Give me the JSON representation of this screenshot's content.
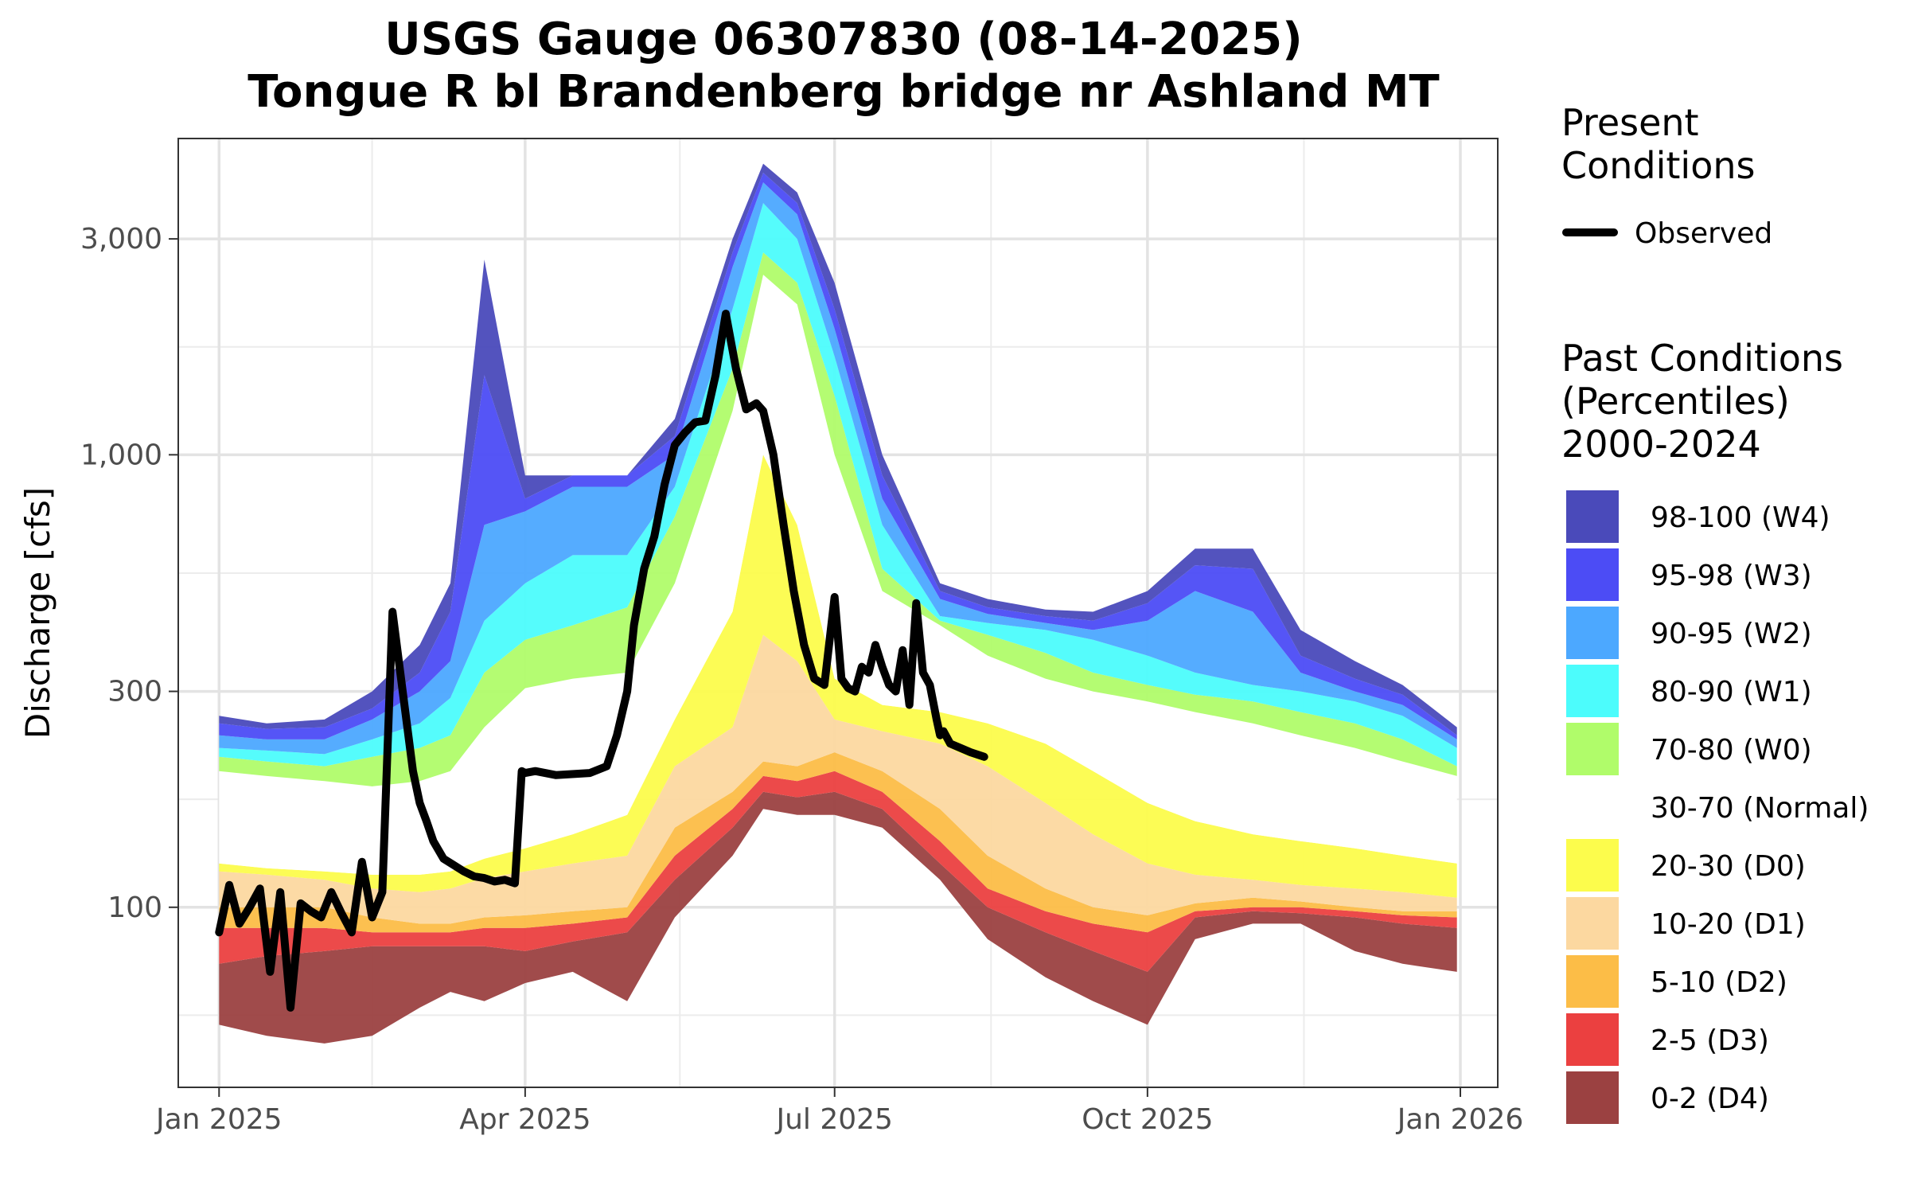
{
  "chart_data": {
    "type": "area",
    "title": [
      "USGS Gauge 06307830 (08-14-2025)",
      "Tongue R bl Brandenberg bridge nr Ashland MT"
    ],
    "ylabel": "Discharge [cfs]",
    "xlabel": "",
    "y_scale": "log",
    "ylim": [
      40,
      5000
    ],
    "xlim": [
      "2024-12-20",
      "2026-01-12"
    ],
    "y_ticks": [
      100,
      300,
      1000,
      3000
    ],
    "y_tick_labels": [
      "100",
      "300",
      "1,000",
      "3,000"
    ],
    "x_ticks": [
      "2025-01-01",
      "2025-04-01",
      "2025-07-01",
      "2025-10-01",
      "2026-01-01"
    ],
    "x_tick_labels": [
      "Jan 2025",
      "Apr 2025",
      "Jul 2025",
      "Oct 2025",
      "Jan 2026"
    ],
    "grid": true,
    "legend_position": "right",
    "legend_present_title": [
      "Present",
      "Conditions"
    ],
    "legend_past_title": [
      "Past Conditions",
      "(Percentiles)",
      "2000-2024"
    ],
    "band_dates": [
      "2025-01-01",
      "2025-01-15",
      "2025-02-01",
      "2025-02-15",
      "2025-03-01",
      "2025-03-10",
      "2025-03-20",
      "2025-04-01",
      "2025-04-15",
      "2025-05-01",
      "2025-05-15",
      "2025-06-01",
      "2025-06-10",
      "2025-06-20",
      "2025-07-01",
      "2025-07-15",
      "2025-08-01",
      "2025-08-15",
      "2025-09-01",
      "2025-09-15",
      "2025-10-01",
      "2025-10-15",
      "2025-11-01",
      "2025-11-15",
      "2025-12-01",
      "2025-12-15",
      "2025-12-31"
    ],
    "band_edges": {
      "min": [
        55,
        52,
        50,
        52,
        60,
        65,
        62,
        68,
        72,
        62,
        95,
        130,
        165,
        160,
        160,
        150,
        115,
        85,
        70,
        62,
        55,
        85,
        92,
        92,
        80,
        75,
        72
      ],
      "p2": [
        75,
        78,
        80,
        82,
        82,
        82,
        82,
        80,
        84,
        88,
        115,
        150,
        180,
        175,
        180,
        165,
        125,
        100,
        88,
        80,
        72,
        95,
        98,
        97,
        95,
        92,
        90
      ],
      "p5": [
        90,
        90,
        90,
        88,
        88,
        88,
        90,
        90,
        92,
        95,
        130,
        165,
        195,
        190,
        200,
        180,
        140,
        110,
        98,
        92,
        88,
        98,
        100,
        100,
        98,
        96,
        95
      ],
      "p10": [
        100,
        100,
        100,
        95,
        92,
        92,
        95,
        96,
        98,
        100,
        150,
        180,
        210,
        205,
        220,
        200,
        165,
        130,
        110,
        100,
        96,
        102,
        105,
        103,
        100,
        98,
        98
      ],
      "p20": [
        120,
        118,
        115,
        110,
        108,
        110,
        116,
        120,
        125,
        130,
        205,
        250,
        400,
        350,
        260,
        245,
        230,
        205,
        170,
        145,
        125,
        118,
        115,
        112,
        110,
        108,
        105
      ],
      "p30": [
        125,
        122,
        120,
        118,
        118,
        120,
        128,
        135,
        145,
        160,
        260,
        450,
        1000,
        700,
        320,
        280,
        270,
        255,
        230,
        200,
        170,
        155,
        145,
        140,
        135,
        130,
        125
      ],
      "p70": [
        200,
        195,
        190,
        185,
        190,
        200,
        250,
        305,
        320,
        330,
        520,
        1250,
        2500,
        2150,
        1000,
        500,
        420,
        360,
        320,
        300,
        285,
        270,
        255,
        240,
        225,
        210,
        195
      ],
      "p80": [
        215,
        210,
        205,
        215,
        225,
        240,
        330,
        390,
        420,
        460,
        730,
        1550,
        2800,
        2400,
        1350,
        560,
        430,
        400,
        365,
        330,
        310,
        295,
        285,
        270,
        255,
        235,
        205
      ],
      "p90": [
        225,
        222,
        218,
        235,
        255,
        290,
        430,
        520,
        600,
        600,
        850,
        2100,
        3600,
        3000,
        1650,
        700,
        440,
        425,
        410,
        390,
        360,
        330,
        310,
        300,
        285,
        265,
        225
      ],
      "p95": [
        240,
        235,
        235,
        260,
        300,
        350,
        700,
        750,
        850,
        850,
        1000,
        2600,
        4000,
        3400,
        1900,
        800,
        480,
        445,
        425,
        410,
        430,
        500,
        450,
        330,
        300,
        280,
        235
      ],
      "p98": [
        255,
        248,
        250,
        275,
        330,
        450,
        1500,
        800,
        900,
        900,
        1100,
        2800,
        4200,
        3600,
        2100,
        900,
        500,
        460,
        440,
        430,
        470,
        570,
        560,
        360,
        320,
        295,
        240
      ],
      "max": [
        265,
        255,
        260,
        300,
        380,
        520,
        2700,
        900,
        900,
        900,
        1200,
        3000,
        4400,
        3800,
        2400,
        1000,
        520,
        480,
        455,
        450,
        500,
        620,
        620,
        410,
        350,
        310,
        250
      ]
    },
    "series": [
      {
        "name": "Observed",
        "x": [
          "2025-01-01",
          "2025-01-04",
          "2025-01-07",
          "2025-01-10",
          "2025-01-13",
          "2025-01-16",
          "2025-01-19",
          "2025-01-22",
          "2025-01-25",
          "2025-01-28",
          "2025-01-31",
          "2025-02-03",
          "2025-02-06",
          "2025-02-09",
          "2025-02-12",
          "2025-02-15",
          "2025-02-18",
          "2025-02-21",
          "2025-02-24",
          "2025-02-27",
          "2025-03-01",
          "2025-03-03",
          "2025-03-05",
          "2025-03-08",
          "2025-03-11",
          "2025-03-14",
          "2025-03-17",
          "2025-03-20",
          "2025-03-23",
          "2025-03-26",
          "2025-03-29",
          "2025-03-31",
          "2025-04-01",
          "2025-04-04",
          "2025-04-10",
          "2025-04-20",
          "2025-04-25",
          "2025-04-28",
          "2025-05-01",
          "2025-05-03",
          "2025-05-06",
          "2025-05-09",
          "2025-05-12",
          "2025-05-15",
          "2025-05-18",
          "2025-05-21",
          "2025-05-24",
          "2025-05-27",
          "2025-05-30",
          "2025-06-02",
          "2025-06-05",
          "2025-06-08",
          "2025-06-10",
          "2025-06-13",
          "2025-06-16",
          "2025-06-19",
          "2025-06-22",
          "2025-06-25",
          "2025-06-28",
          "2025-07-01",
          "2025-07-03",
          "2025-07-05",
          "2025-07-07",
          "2025-07-09",
          "2025-07-11",
          "2025-07-13",
          "2025-07-15",
          "2025-07-17",
          "2025-07-19",
          "2025-07-21",
          "2025-07-23",
          "2025-07-25",
          "2025-07-27",
          "2025-07-29",
          "2025-07-31",
          "2025-08-01",
          "2025-08-02",
          "2025-08-04",
          "2025-08-07",
          "2025-08-10",
          "2025-08-14"
        ],
        "y": [
          88,
          112,
          92,
          100,
          110,
          72,
          108,
          60,
          102,
          98,
          95,
          108,
          97,
          88,
          126,
          95,
          108,
          450,
          300,
          200,
          170,
          155,
          140,
          128,
          124,
          120,
          117,
          116,
          114,
          115,
          113,
          200,
          198,
          200,
          196,
          198,
          205,
          240,
          300,
          420,
          560,
          660,
          860,
          1050,
          1120,
          1180,
          1190,
          1500,
          2050,
          1550,
          1260,
          1300,
          1250,
          1000,
          700,
          500,
          380,
          320,
          310,
          485,
          320,
          305,
          300,
          340,
          330,
          380,
          340,
          310,
          300,
          370,
          280,
          470,
          330,
          310,
          260,
          240,
          245,
          230,
          225,
          220,
          215
        ]
      }
    ],
    "legend": [
      {
        "label": "98-100 (W4)",
        "color": "#4a4aba"
      },
      {
        "label": "95-98 (W3)",
        "color": "#4c4cf5"
      },
      {
        "label": "90-95 (W2)",
        "color": "#4ca8ff"
      },
      {
        "label": "80-90 (W1)",
        "color": "#4cfcfc"
      },
      {
        "label": "70-80 (W0)",
        "color": "#b0fc6a"
      },
      {
        "label": "30-70 (Normal)",
        "color": "#ffffff"
      },
      {
        "label": "20-30 (D0)",
        "color": "#fcfc4c"
      },
      {
        "label": "10-20 (D1)",
        "color": "#fcd8a0"
      },
      {
        "label": "5-10 (D2)",
        "color": "#fcbd47"
      },
      {
        "label": "2-5 (D3)",
        "color": "#eb4040"
      },
      {
        "label": "0-2 (D4)",
        "color": "#9b4141"
      }
    ],
    "observed_color": "#000000"
  }
}
